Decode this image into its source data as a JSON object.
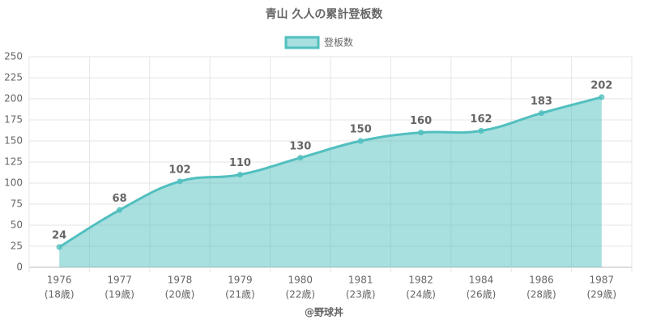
{
  "chart_data": {
    "type": "line",
    "title": "青山 久人の累計登板数",
    "categories": [
      "1976",
      "1977",
      "1978",
      "1979",
      "1980",
      "1981",
      "1982",
      "1984",
      "1986",
      "1987"
    ],
    "category_sublabels": [
      "(18歳)",
      "(19歳)",
      "(20歳)",
      "(21歳)",
      "(22歳)",
      "(23歳)",
      "(24歳)",
      "(26歳)",
      "(28歳)",
      "(29歳)"
    ],
    "series": [
      {
        "name": "登板数",
        "color": "#52bfbf",
        "values": [
          24,
          68,
          102,
          110,
          130,
          150,
          160,
          162,
          183,
          202
        ]
      }
    ],
    "ylim": [
      0,
      250
    ],
    "yticks": [
      0,
      25,
      50,
      75,
      100,
      125,
      150,
      175,
      200,
      225,
      250
    ],
    "grid": true,
    "legend": "top",
    "xlabel": "@野球丼"
  }
}
